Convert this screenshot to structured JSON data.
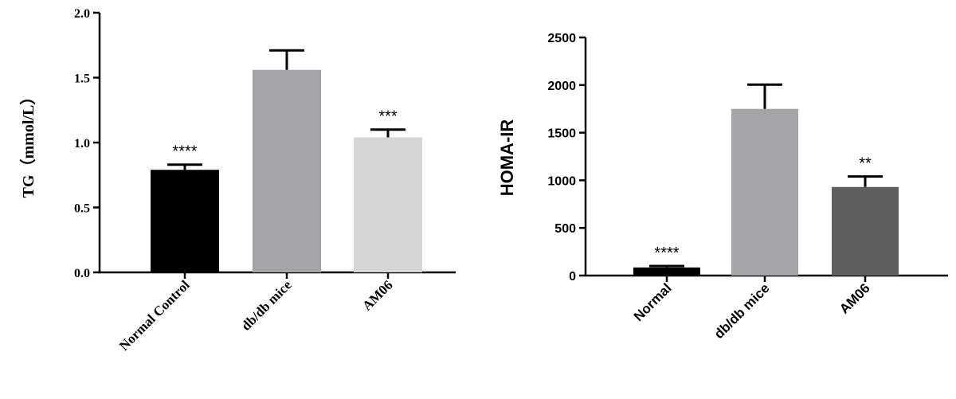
{
  "chart_data": [
    {
      "type": "bar",
      "title": "",
      "ylabel": "TG（mmol/L）",
      "xlabel": "",
      "ylim": [
        0,
        2.0
      ],
      "yticks": [
        "0.0",
        "0.5",
        "1.0",
        "1.5",
        "2.0"
      ],
      "yticks_values": [
        0,
        0.5,
        1.0,
        1.5,
        2.0
      ],
      "categories": [
        "Normal Control",
        "db/db mice",
        "AM06"
      ],
      "values": [
        0.79,
        1.56,
        1.04
      ],
      "errors": [
        0.04,
        0.15,
        0.06
      ],
      "annotations": [
        "****",
        "",
        "***"
      ],
      "colors": [
        "#000000",
        "#a4a4a8",
        "#d6d6d6"
      ]
    },
    {
      "type": "bar",
      "title": "",
      "ylabel": "HOMA-IR",
      "xlabel": "",
      "ylim": [
        0,
        2500
      ],
      "yticks": [
        "0",
        "500",
        "1000",
        "1500",
        "2000",
        "2500"
      ],
      "yticks_values": [
        0,
        500,
        1000,
        1500,
        2000,
        2500
      ],
      "categories": [
        "Normal",
        "db/db mice",
        "AM06"
      ],
      "values": [
        85,
        1750,
        930
      ],
      "errors": [
        15,
        255,
        110
      ],
      "annotations": [
        "****",
        "",
        "**"
      ],
      "colors": [
        "#000000",
        "#a4a4a8",
        "#5f5f5f"
      ]
    }
  ]
}
